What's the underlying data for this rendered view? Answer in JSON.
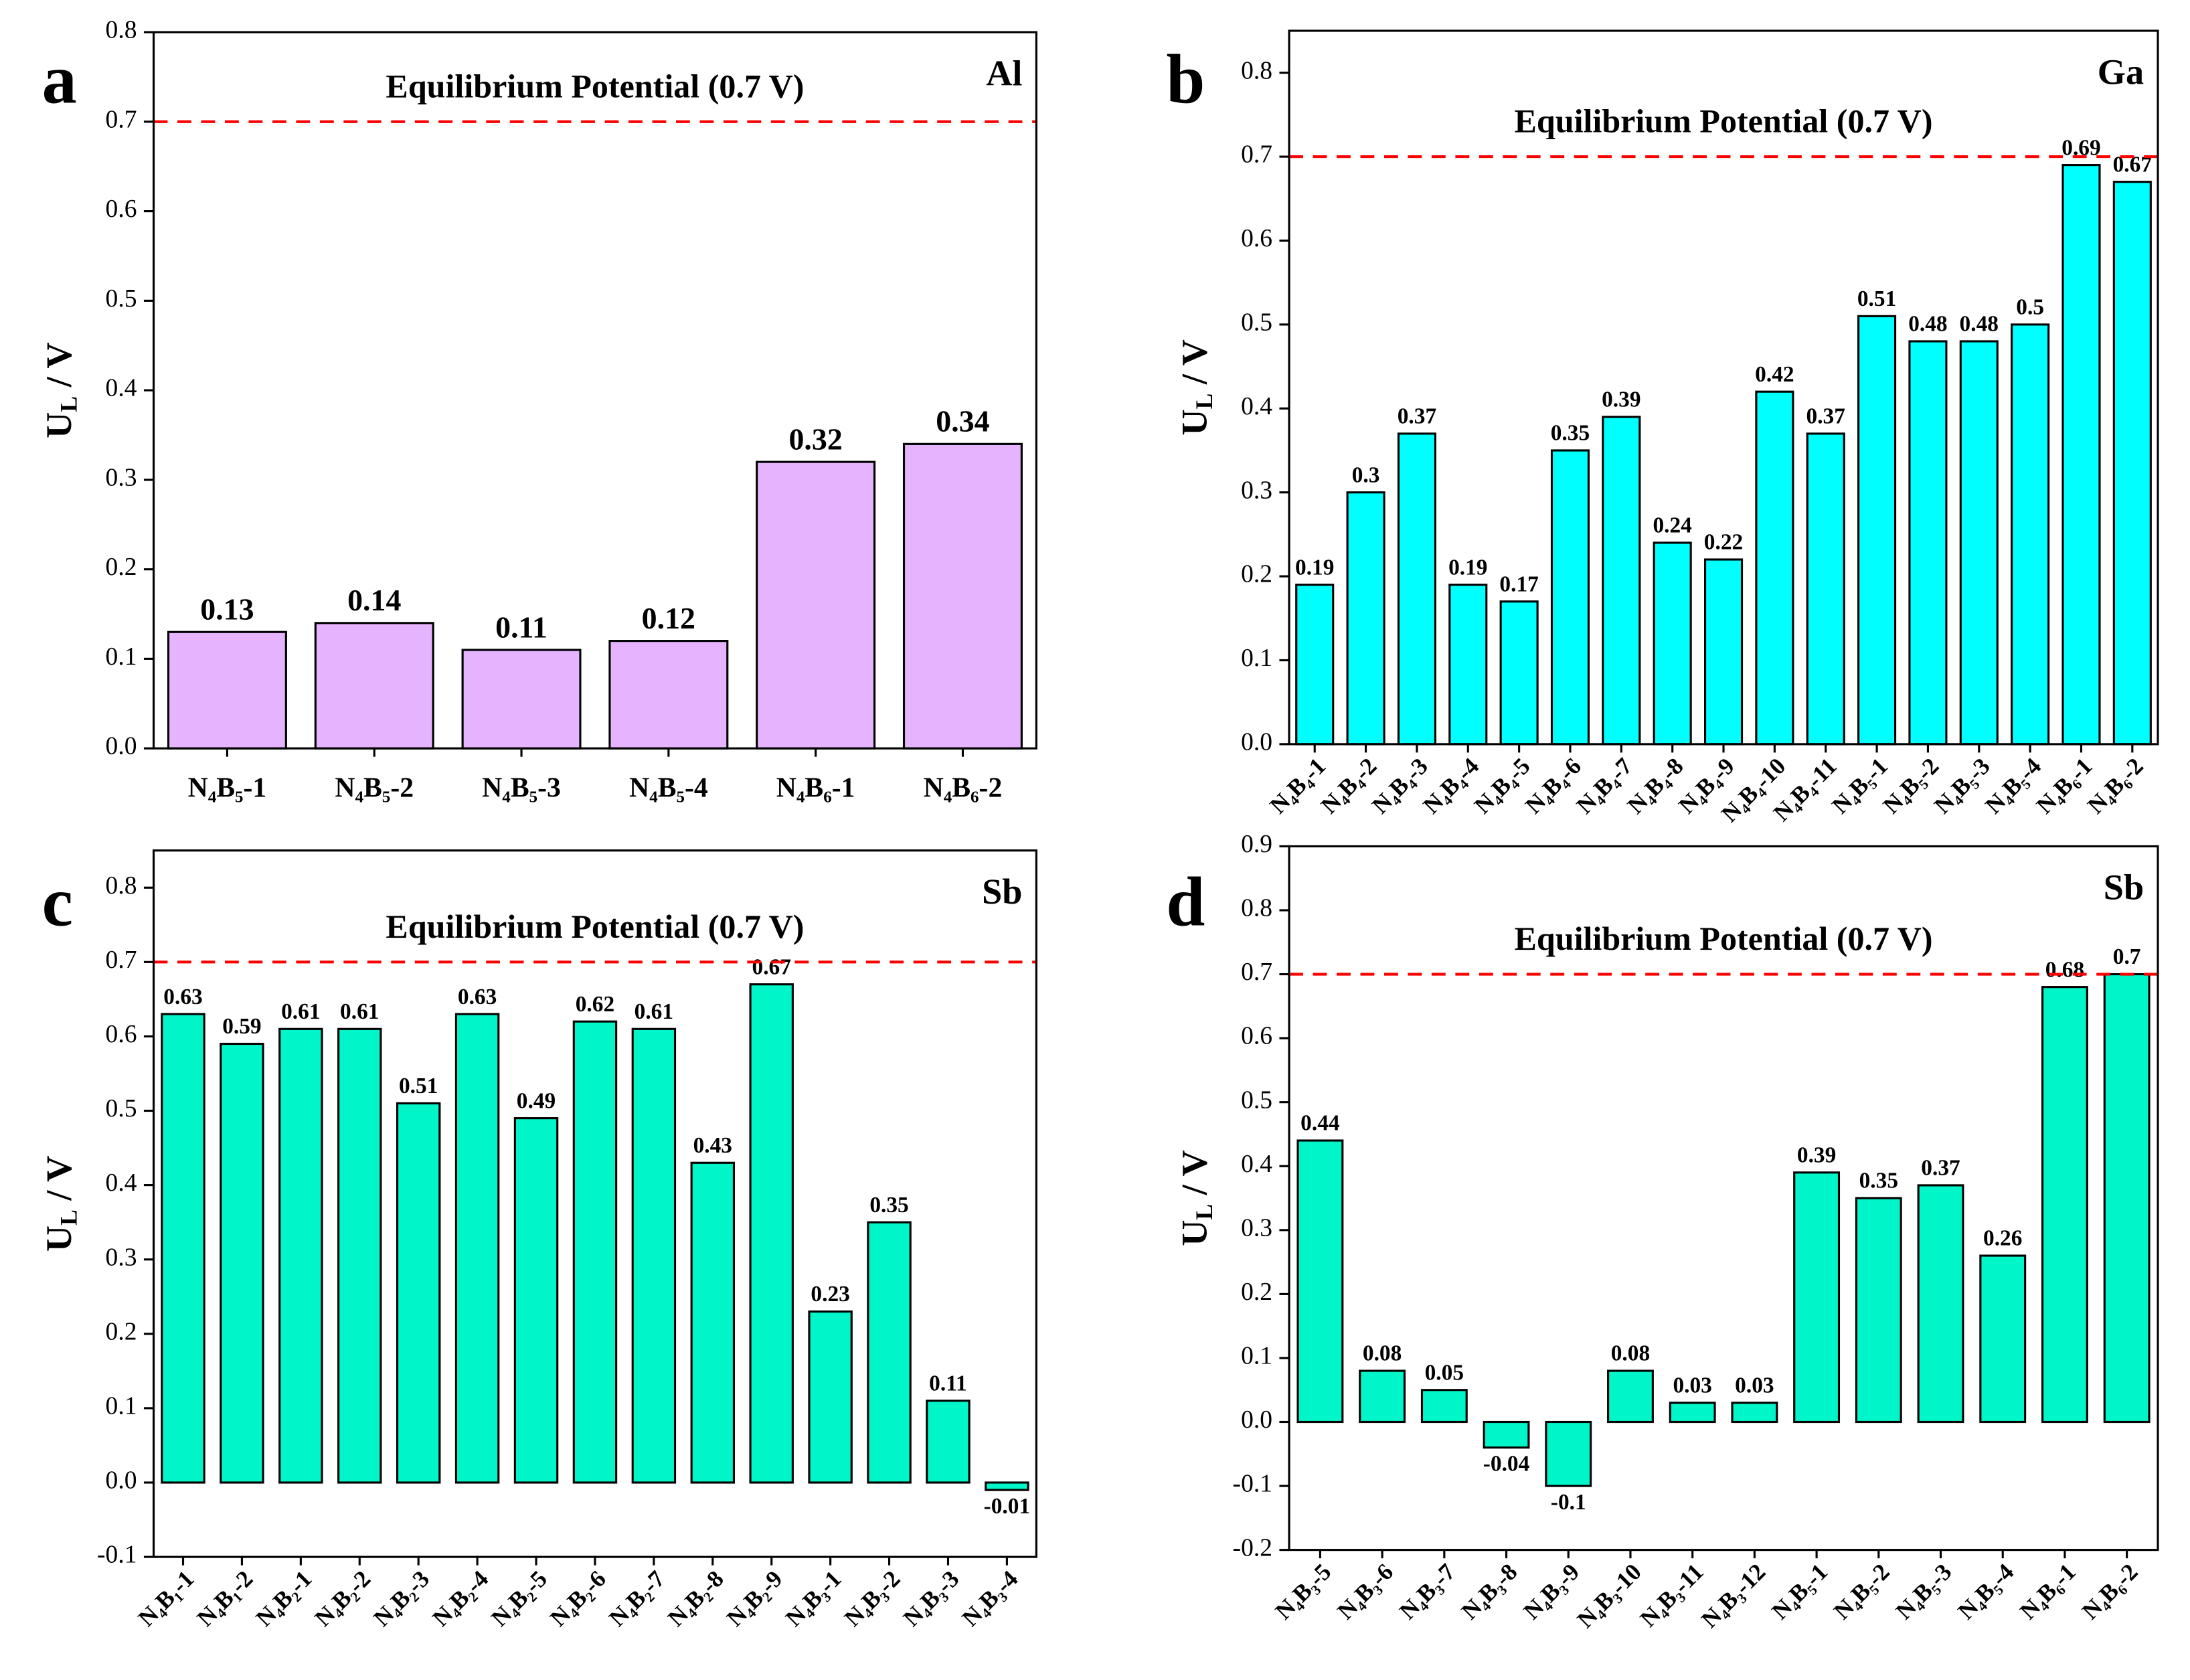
{
  "chart_data": [
    {
      "type": "bar",
      "panel_label": "a",
      "corner_label": "Al",
      "annotation": "Equilibrium Potential (0.7 V)",
      "ref_line": 0.7,
      "ref_color": "#ff0000",
      "ylabel": [
        "U",
        "L",
        " / V"
      ],
      "categories": [
        "N₄B₅-1",
        "N₄B₅-2",
        "N₄B₅-3",
        "N₄B₅-4",
        "N₄B₆-1",
        "N₄B₆-2"
      ],
      "values": [
        0.13,
        0.14,
        0.11,
        0.12,
        0.32,
        0.34
      ],
      "color": "#e6b3ff",
      "ylim": [
        0,
        0.8
      ],
      "yticks": [
        {
          "value": 0,
          "label": "0.0"
        },
        0.1,
        0.2,
        0.3,
        0.4,
        0.5,
        0.6,
        0.7,
        0.8
      ]
    },
    {
      "type": "bar",
      "panel_label": "b",
      "corner_label": "Ga",
      "annotation": "Equilibrium Potential (0.7 V)",
      "ref_line": 0.7,
      "ref_color": "#ff0000",
      "ylabel": [
        "U",
        "L",
        " / V"
      ],
      "categories": [
        "N₄B₄-1",
        "N₄B₄-2",
        "N₄B₄-3",
        "N₄B₄-4",
        "N₄B₄-5",
        "N₄B₄-6",
        "N₄B₄-7",
        "N₄B₄-8",
        "N₄B₄-9",
        "N₄B₄-10",
        "N₄B₄-11",
        "N₄B₅-1",
        "N₄B₅-2",
        "N₄B₅-3",
        "N₄B₅-4",
        "N₄B₆-1",
        "N₄B₆-2"
      ],
      "values": [
        0.19,
        0.3,
        0.37,
        0.19,
        0.17,
        0.35,
        0.39,
        0.24,
        0.22,
        0.42,
        0.37,
        0.51,
        0.48,
        0.48,
        0.5,
        0.69,
        0.67
      ],
      "color": "#00ffff",
      "ylim": [
        0,
        0.85
      ],
      "yticks": [
        {
          "value": 0,
          "label": "0.0"
        },
        0.1,
        0.2,
        0.3,
        0.4,
        0.5,
        0.6,
        0.7,
        0.8
      ]
    },
    {
      "type": "bar",
      "panel_label": "c",
      "corner_label": "Sb",
      "annotation": "Equilibrium Potential (0.7 V)",
      "ref_line": 0.7,
      "ref_color": "#ff0000",
      "ylabel": [
        "U",
        "L",
        " / V"
      ],
      "categories": [
        "N₄B₁-1",
        "N₄B₁-2",
        "N₄B₂-1",
        "N₄B₂-2",
        "N₄B₂-3",
        "N₄B₂-4",
        "N₄B₂-5",
        "N₄B₂-6",
        "N₄B₂-7",
        "N₄B₂-8",
        "N₄B₂-9",
        "N₄B₃-1",
        "N₄B₃-2",
        "N₄B₃-3",
        "N₄B₃-4"
      ],
      "values": [
        0.63,
        0.59,
        0.61,
        0.61,
        0.51,
        0.63,
        0.49,
        0.62,
        0.61,
        0.43,
        0.67,
        0.23,
        0.35,
        0.11,
        -0.01
      ],
      "color": "#00f5c8",
      "ylim": [
        -0.1,
        0.85
      ],
      "yticks": [
        -0.1,
        {
          "value": 0,
          "label": "0.0"
        },
        0.1,
        0.2,
        0.3,
        0.4,
        0.5,
        0.6,
        0.7,
        0.8
      ]
    },
    {
      "type": "bar",
      "panel_label": "d",
      "corner_label": "Sb",
      "annotation": "Equilibrium Potential (0.7 V)",
      "ref_line": 0.7,
      "ref_color": "#ff0000",
      "ylabel": [
        "U",
        "L",
        " / V"
      ],
      "categories": [
        "N₄B₃-5",
        "N₄B₃-6",
        "N₄B₃-7",
        "N₄B₃-8",
        "N₄B₃-9",
        "N₄B₃-10",
        "N₄B₃-11",
        "N₄B₃-12",
        "N₄B₅-1",
        "N₄B₅-2",
        "N₄B₅-3",
        "N₄B₅-4",
        "N₄B₆-1",
        "N₄B₆-2"
      ],
      "values": [
        0.44,
        0.08,
        0.05,
        -0.04,
        -0.1,
        0.08,
        0.03,
        0.03,
        0.39,
        0.35,
        0.37,
        0.26,
        0.68,
        0.7
      ],
      "color": "#00f5c8",
      "ylim": [
        -0.2,
        0.9
      ],
      "yticks": [
        -0.2,
        -0.1,
        {
          "value": 0,
          "label": "0.0"
        },
        0.1,
        0.2,
        0.3,
        0.4,
        0.5,
        0.6,
        0.7,
        0.8,
        0.9
      ]
    }
  ]
}
